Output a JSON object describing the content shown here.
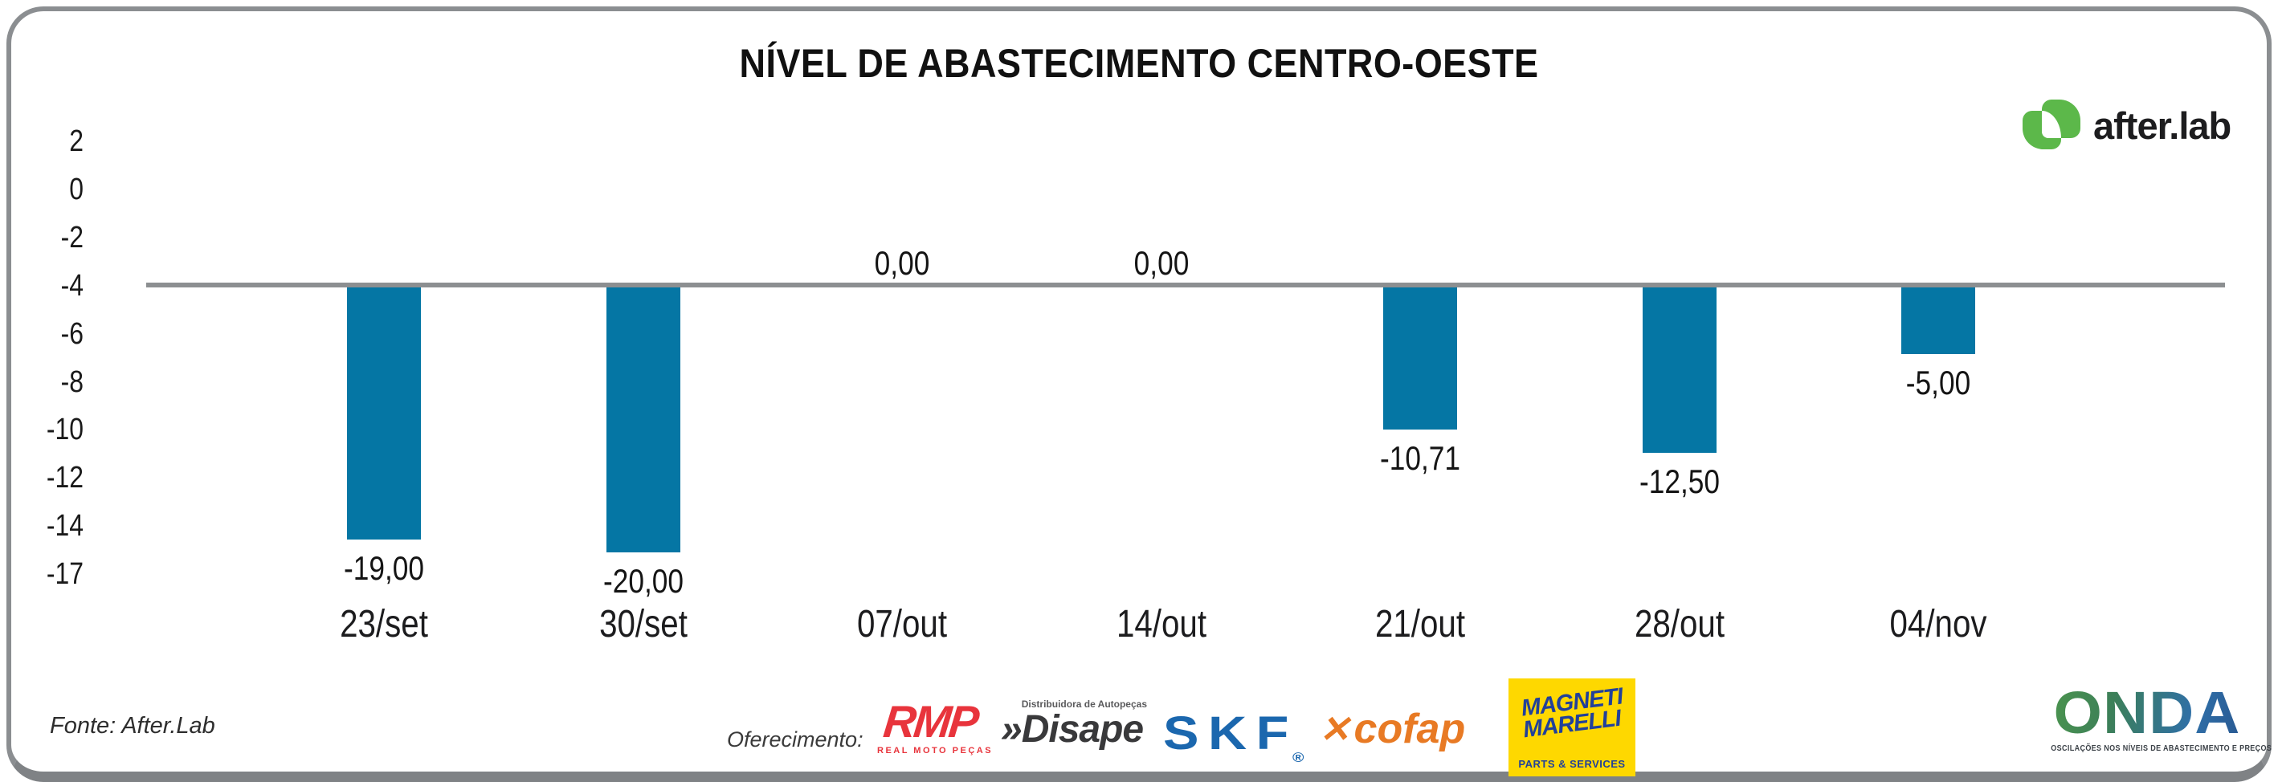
{
  "title": "NÍVEL DE ABASTECIMENTO CENTRO-OESTE",
  "branding": {
    "afterlab": {
      "text": "after.lab",
      "green": "#5cb84a",
      "dark": "#1d1d1f"
    },
    "fonte": "Fonte: After.Lab"
  },
  "chart_data": {
    "type": "bar",
    "title": "NÍVEL DE ABASTECIMENTO CENTRO-OESTE",
    "categories": [
      "23/set",
      "30/set",
      "07/out",
      "14/out",
      "21/out",
      "28/out",
      "04/nov"
    ],
    "values": [
      -19,
      -20,
      0,
      0,
      -10.71,
      -12.5,
      -5
    ],
    "value_labels": [
      "-19,00",
      "-20,00",
      "0,00",
      "0,00",
      "-10,71",
      "-12,50",
      "-5,00"
    ],
    "y_ticks": [
      "2",
      "0",
      "-2",
      "-4",
      "-6",
      "-8",
      "-10",
      "-12",
      "-14",
      "-17"
    ],
    "bar_color": "#0576a4",
    "baseline_color": "#8c8f91",
    "grid": false,
    "legend": false,
    "xlabel": "",
    "ylabel": ""
  },
  "sponsors": {
    "label": "Oferecimento:",
    "rmp": {
      "name": "RMP",
      "sub": "REAL MOTO PEÇAS",
      "color": "#e8343c"
    },
    "disape": {
      "top": "Distribuidora de Autopeças",
      "name": "»Disape",
      "color": "#39393b"
    },
    "skf": {
      "name": "SKF",
      "reg": "®",
      "color": "#1b67ae"
    },
    "cofap": {
      "icon_glyph": "✕",
      "name": "cofap",
      "color": "#e87a24"
    },
    "magneti": {
      "line1": "MAGNETI",
      "line2": "MARELLI",
      "sub": "PARTS & SERVICES",
      "bg": "#fed800",
      "blue": "#21409a"
    }
  },
  "onda": {
    "name": "ONDA",
    "sub": "OSCILAÇÕES NOS NÍVEIS DE ABASTECIMENTO E PREÇOS"
  }
}
